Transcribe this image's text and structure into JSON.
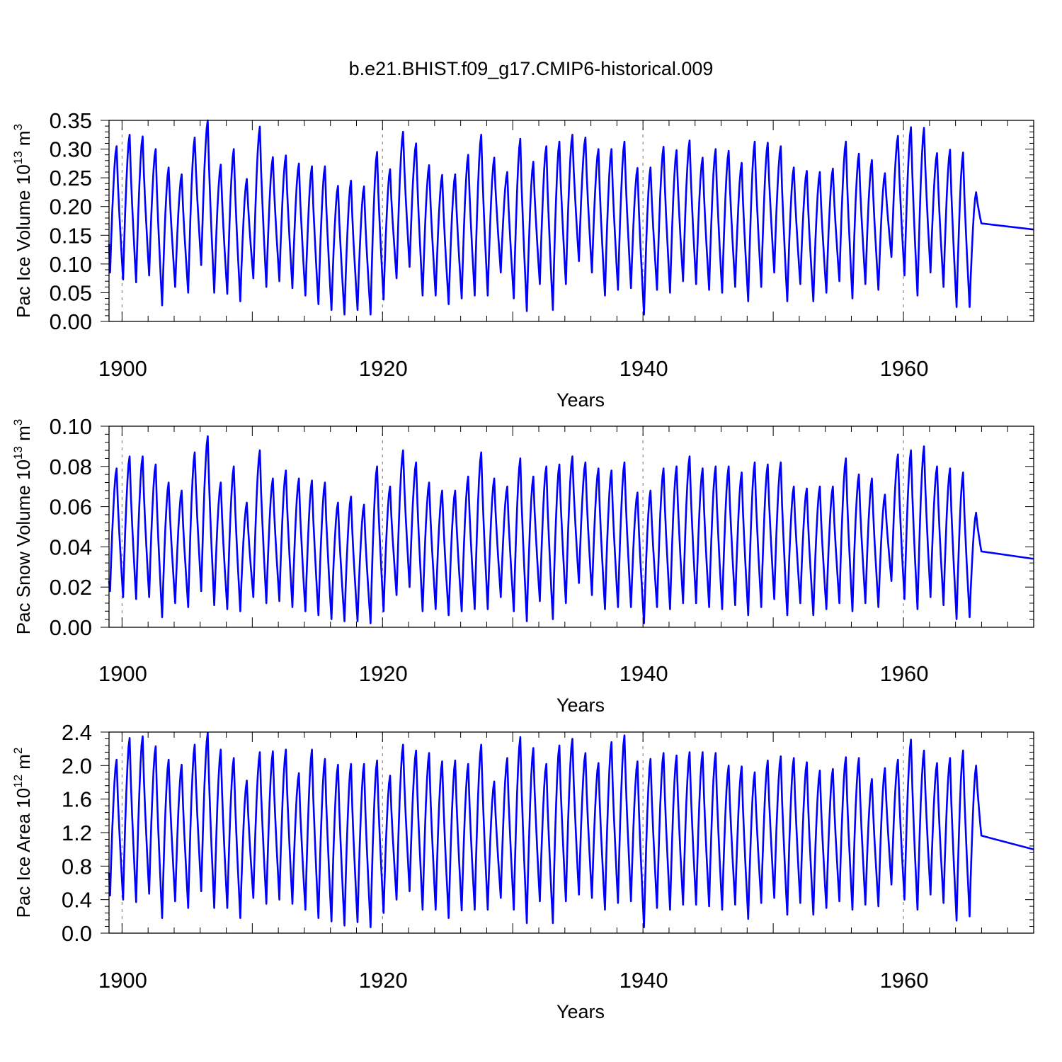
{
  "title": "b.e21.BHIST.f09_g17.CMIP6-historical.009",
  "colors": {
    "series": "#0000ff",
    "axes": "#000000",
    "grid": "#888888",
    "background": "#ffffff"
  },
  "chart_data": [
    {
      "type": "line",
      "ylabel": {
        "main": "Pac Ice Volume 10",
        "exp": "13",
        "unit": " m",
        "unit_exp": "3"
      },
      "xlabel": "Years",
      "x_range": [
        1899,
        1970
      ],
      "ylim": [
        0,
        0.35
      ],
      "y_ticks": [
        0.0,
        0.05,
        0.1,
        0.15,
        0.2,
        0.25,
        0.3,
        0.35
      ],
      "y_tick_labels": [
        "0.00",
        "0.05",
        "0.10",
        "0.15",
        "0.20",
        "0.25",
        "0.30",
        "0.35"
      ],
      "y_decimals": 2,
      "x_ticks": [
        1900,
        1920,
        1940,
        1960
      ],
      "x_tick_labels": [
        "1900",
        "1920",
        "1940",
        "1960"
      ],
      "grid_x": [
        1900,
        1920,
        1940,
        1960
      ],
      "series": [
        {
          "name": "Pac Ice Volume",
          "start_year": 1899,
          "start_value": 0.135,
          "end_value": 0.16,
          "annual_max": [
            0.305,
            0.325,
            0.322,
            0.3,
            0.268,
            0.256,
            0.32,
            0.35,
            0.273,
            0.3,
            0.248,
            0.339,
            0.286,
            0.289,
            0.275,
            0.27,
            0.27,
            0.236,
            0.245,
            0.235,
            0.295,
            0.265,
            0.33,
            0.31,
            0.272,
            0.255,
            0.256,
            0.29,
            0.325,
            0.285,
            0.26,
            0.318,
            0.278,
            0.305,
            0.313,
            0.325,
            0.32,
            0.3,
            0.3,
            0.313,
            0.267,
            0.268,
            0.304,
            0.298,
            0.315,
            0.285,
            0.3,
            0.297,
            0.276,
            0.313,
            0.311,
            0.305,
            0.268,
            0.262,
            0.26,
            0.266,
            0.313,
            0.292,
            0.281,
            0.258,
            0.323,
            0.338,
            0.337,
            0.293,
            0.299,
            0.294,
            0.225
          ],
          "annual_min": [
            0.085,
            0.073,
            0.068,
            0.08,
            0.028,
            0.06,
            0.05,
            0.098,
            0.05,
            0.048,
            0.035,
            0.075,
            0.06,
            0.07,
            0.058,
            0.045,
            0.03,
            0.02,
            0.012,
            0.02,
            0.012,
            0.038,
            0.075,
            0.095,
            0.045,
            0.045,
            0.03,
            0.04,
            0.045,
            0.045,
            0.085,
            0.04,
            0.018,
            0.065,
            0.02,
            0.065,
            0.105,
            0.085,
            0.045,
            0.055,
            0.058,
            0.012,
            0.055,
            0.05,
            0.07,
            0.065,
            0.055,
            0.05,
            0.06,
            0.035,
            0.06,
            0.085,
            0.035,
            0.065,
            0.035,
            0.05,
            0.07,
            0.04,
            0.065,
            0.055,
            0.112,
            0.08,
            0.045,
            0.085,
            0.06,
            0.025,
            0.025
          ]
        }
      ]
    },
    {
      "type": "line",
      "ylabel": {
        "main": "Pac Snow Volume 10",
        "exp": "13",
        "unit": " m",
        "unit_exp": "3"
      },
      "xlabel": "Years",
      "x_range": [
        1899,
        1970
      ],
      "ylim": [
        0,
        0.1
      ],
      "y_ticks": [
        0.0,
        0.02,
        0.04,
        0.06,
        0.08,
        0.1
      ],
      "y_tick_labels": [
        "0.00",
        "0.02",
        "0.04",
        "0.06",
        "0.08",
        "0.10"
      ],
      "y_decimals": 2,
      "x_ticks": [
        1900,
        1920,
        1940,
        1960
      ],
      "x_tick_labels": [
        "1900",
        "1920",
        "1940",
        "1960"
      ],
      "grid_x": [
        1900,
        1920,
        1940,
        1960
      ],
      "series": [
        {
          "name": "Pac Snow Volume",
          "start_year": 1899,
          "start_value": 0.023,
          "end_value": 0.034,
          "annual_max": [
            0.079,
            0.085,
            0.085,
            0.081,
            0.072,
            0.068,
            0.087,
            0.095,
            0.072,
            0.08,
            0.062,
            0.088,
            0.074,
            0.078,
            0.074,
            0.073,
            0.072,
            0.062,
            0.065,
            0.061,
            0.08,
            0.07,
            0.088,
            0.082,
            0.072,
            0.068,
            0.068,
            0.075,
            0.087,
            0.074,
            0.07,
            0.084,
            0.075,
            0.08,
            0.081,
            0.085,
            0.082,
            0.079,
            0.078,
            0.082,
            0.067,
            0.068,
            0.079,
            0.08,
            0.085,
            0.079,
            0.08,
            0.08,
            0.077,
            0.082,
            0.081,
            0.082,
            0.07,
            0.069,
            0.07,
            0.07,
            0.084,
            0.076,
            0.074,
            0.066,
            0.086,
            0.088,
            0.09,
            0.08,
            0.079,
            0.077,
            0.057
          ],
          "annual_min": [
            0.018,
            0.015,
            0.014,
            0.015,
            0.005,
            0.012,
            0.01,
            0.018,
            0.011,
            0.009,
            0.008,
            0.015,
            0.012,
            0.013,
            0.01,
            0.008,
            0.006,
            0.004,
            0.003,
            0.003,
            0.002,
            0.008,
            0.016,
            0.02,
            0.008,
            0.009,
            0.006,
            0.008,
            0.009,
            0.009,
            0.015,
            0.008,
            0.003,
            0.013,
            0.004,
            0.012,
            0.022,
            0.016,
            0.009,
            0.01,
            0.01,
            0.002,
            0.01,
            0.009,
            0.012,
            0.012,
            0.01,
            0.009,
            0.011,
            0.006,
            0.01,
            0.014,
            0.006,
            0.012,
            0.006,
            0.009,
            0.012,
            0.008,
            0.012,
            0.01,
            0.023,
            0.014,
            0.009,
            0.015,
            0.011,
            0.004,
            0.005
          ]
        }
      ]
    },
    {
      "type": "line",
      "ylabel": {
        "main": "Pac Ice Area 10",
        "exp": "12",
        "unit": " m",
        "unit_exp": "2"
      },
      "xlabel": "Years",
      "x_range": [
        1899,
        1970
      ],
      "ylim": [
        0,
        2.4
      ],
      "y_ticks": [
        0.0,
        0.4,
        0.8,
        1.2,
        1.6,
        2.0,
        2.4
      ],
      "y_tick_labels": [
        "0.0",
        "0.4",
        "0.8",
        "1.2",
        "1.6",
        "2.0",
        "2.4"
      ],
      "y_decimals": 1,
      "x_ticks": [
        1900,
        1920,
        1940,
        1960
      ],
      "x_tick_labels": [
        "1900",
        "1920",
        "1940",
        "1960"
      ],
      "grid_x": [
        1900,
        1920,
        1940,
        1960
      ],
      "series": [
        {
          "name": "Pac Ice Area",
          "start_year": 1899,
          "start_value": 0.72,
          "end_value": 1.0,
          "annual_max": [
            2.07,
            2.33,
            2.35,
            2.23,
            2.07,
            2.01,
            2.25,
            2.39,
            2.19,
            2.09,
            1.82,
            2.16,
            2.17,
            2.19,
            1.91,
            2.19,
            2.08,
            2.01,
            2.02,
            2.02,
            2.06,
            1.88,
            2.25,
            2.18,
            2.15,
            2.05,
            2.06,
            2.02,
            2.25,
            1.81,
            2.09,
            2.34,
            2.21,
            2.02,
            2.24,
            2.32,
            2.15,
            2.03,
            2.28,
            2.36,
            2.05,
            2.08,
            2.15,
            2.12,
            2.16,
            2.16,
            2.15,
            2.0,
            1.99,
            1.92,
            2.06,
            2.11,
            2.09,
            2.04,
            1.94,
            1.96,
            2.1,
            2.09,
            1.84,
            1.97,
            2.07,
            2.31,
            2.18,
            2.03,
            2.09,
            2.18,
            2.0
          ],
          "annual_min": [
            0.45,
            0.4,
            0.37,
            0.47,
            0.18,
            0.38,
            0.3,
            0.5,
            0.3,
            0.3,
            0.18,
            0.42,
            0.35,
            0.4,
            0.35,
            0.28,
            0.18,
            0.14,
            0.09,
            0.13,
            0.07,
            0.24,
            0.4,
            0.5,
            0.28,
            0.28,
            0.18,
            0.27,
            0.28,
            0.28,
            0.42,
            0.28,
            0.12,
            0.38,
            0.12,
            0.38,
            0.46,
            0.42,
            0.28,
            0.36,
            0.38,
            0.07,
            0.3,
            0.28,
            0.34,
            0.34,
            0.32,
            0.28,
            0.34,
            0.17,
            0.36,
            0.42,
            0.22,
            0.36,
            0.22,
            0.3,
            0.38,
            0.28,
            0.34,
            0.32,
            0.58,
            0.4,
            0.28,
            0.46,
            0.36,
            0.15,
            0.2
          ]
        }
      ]
    }
  ]
}
